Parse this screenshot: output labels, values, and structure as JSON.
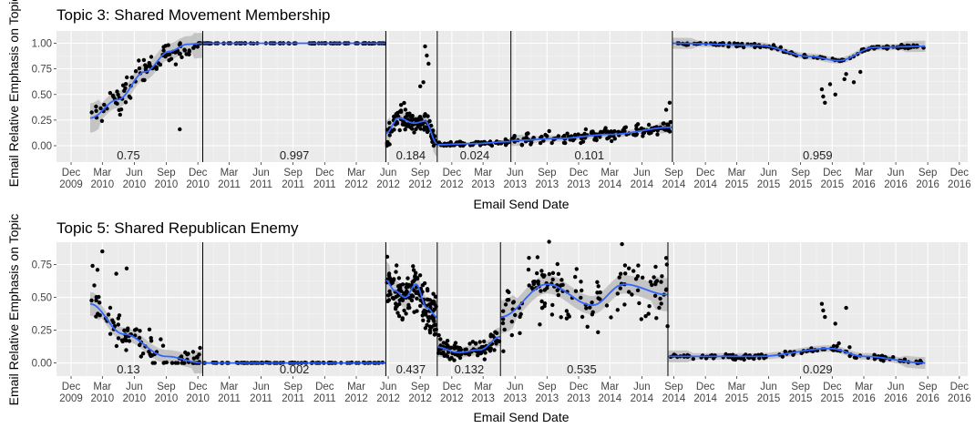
{
  "chart_data": [
    {
      "type": "scatter",
      "title": "Topic 3: Shared Movement Membership",
      "xlabel": "Email Send Date",
      "ylabel": "Email Relative Emphasis on Topic",
      "xlim": [
        "2009-10-20",
        "2016-12-25"
      ],
      "ylim": [
        -0.16,
        1.12
      ],
      "y_ticks": [
        0.0,
        0.25,
        0.5,
        0.75,
        1.0
      ],
      "y_tick_labels": [
        "0.00",
        "0.25",
        "0.50",
        "0.75",
        "1.00"
      ],
      "x_ticks": [
        "2009-12-01",
        "2010-03-01",
        "2010-06-01",
        "2010-09-01",
        "2010-12-01",
        "2011-03-01",
        "2011-06-01",
        "2011-09-01",
        "2011-12-01",
        "2012-03-01",
        "2012-06-01",
        "2012-09-01",
        "2012-12-01",
        "2013-03-01",
        "2013-06-01",
        "2013-09-01",
        "2013-12-01",
        "2014-03-01",
        "2014-06-01",
        "2014-09-01",
        "2014-12-01",
        "2015-03-01",
        "2015-06-01",
        "2015-09-01",
        "2015-12-01",
        "2016-03-01",
        "2016-06-01",
        "2016-09-01",
        "2016-12-01"
      ],
      "x_tick_labels": [
        [
          "Dec",
          "2009"
        ],
        [
          "Mar",
          "2010"
        ],
        [
          "Jun",
          "2010"
        ],
        [
          "Sep",
          "2010"
        ],
        [
          "Dec",
          "2010"
        ],
        [
          "Mar",
          "2011"
        ],
        [
          "Jun",
          "2011"
        ],
        [
          "Sep",
          "2011"
        ],
        [
          "Dec",
          "2011"
        ],
        [
          "Mar",
          "2012"
        ],
        [
          "Jun",
          "2012"
        ],
        [
          "Sep",
          "2012"
        ],
        [
          "Dec",
          "2012"
        ],
        [
          "Mar",
          "2013"
        ],
        [
          "Jun",
          "2013"
        ],
        [
          "Sep",
          "2013"
        ],
        [
          "Dec",
          "2013"
        ],
        [
          "Mar",
          "2014"
        ],
        [
          "Jun",
          "2014"
        ],
        [
          "Sep",
          "2014"
        ],
        [
          "Dec",
          "2014"
        ],
        [
          "Mar",
          "2015"
        ],
        [
          "Jun",
          "2015"
        ],
        [
          "Sep",
          "2015"
        ],
        [
          "Dec",
          "2015"
        ],
        [
          "Mar",
          "2016"
        ],
        [
          "Jun",
          "2016"
        ],
        [
          "Sep",
          "2016"
        ],
        [
          "Dec",
          "2016"
        ]
      ],
      "breakpoints": [
        "2010-12-15",
        "2012-05-25",
        "2012-10-20",
        "2013-05-20",
        "2014-08-28"
      ],
      "segment_labels": [
        {
          "x": "2010-05-15",
          "label": "0.75"
        },
        {
          "x": "2011-09-05",
          "label": "0.997"
        },
        {
          "x": "2012-08-05",
          "label": "0.184"
        },
        {
          "x": "2013-02-05",
          "label": "0.024"
        },
        {
          "x": "2014-01-01",
          "label": "0.101"
        },
        {
          "x": "2015-10-20",
          "label": "0.959"
        }
      ],
      "points_colour": "#000000",
      "smooth_colour": "#3366ff",
      "band_colour": "#bdbdbd",
      "segments": [
        {
          "start": "2010-01-25",
          "end": "2010-12-15",
          "count": 95,
          "spread": 0.13,
          "band": 0.08,
          "trend": [
            [
              "2010-01-25",
              0.27
            ],
            [
              "2010-04-15",
              0.45
            ],
            [
              "2010-07-01",
              0.72
            ],
            [
              "2010-09-10",
              0.92
            ],
            [
              "2010-11-01",
              0.99
            ],
            [
              "2010-12-15",
              1.0
            ]
          ]
        },
        {
          "start": "2010-12-15",
          "end": "2012-05-25",
          "count": 90,
          "spread": 0.003,
          "band": 0.006,
          "trend": [
            [
              "2010-12-15",
              1.0
            ],
            [
              "2012-05-25",
              1.0
            ]
          ]
        },
        {
          "start": "2012-05-25",
          "end": "2012-10-20",
          "count": 110,
          "spread": 0.12,
          "band": 0.07,
          "trend": [
            [
              "2012-05-25",
              0.12
            ],
            [
              "2012-07-01",
              0.27
            ],
            [
              "2012-08-15",
              0.22
            ],
            [
              "2012-09-15",
              0.24
            ],
            [
              "2012-10-20",
              0.02
            ]
          ]
        },
        {
          "start": "2012-10-20",
          "end": "2013-05-20",
          "count": 75,
          "spread": 0.025,
          "band": 0.015,
          "trend": [
            [
              "2012-10-20",
              0.01
            ],
            [
              "2013-02-01",
              0.02
            ],
            [
              "2013-05-20",
              0.04
            ]
          ]
        },
        {
          "start": "2013-05-20",
          "end": "2014-08-28",
          "count": 160,
          "spread": 0.06,
          "band": 0.03,
          "trend": [
            [
              "2013-05-20",
              0.05
            ],
            [
              "2013-10-01",
              0.07
            ],
            [
              "2014-03-01",
              0.11
            ],
            [
              "2014-08-28",
              0.18
            ]
          ]
        },
        {
          "start": "2014-08-28",
          "end": "2016-08-25",
          "count": 130,
          "spread": 0.02,
          "band": 0.03,
          "trend": [
            [
              "2014-08-28",
              1.0
            ],
            [
              "2015-05-01",
              0.98
            ],
            [
              "2015-10-01",
              0.87
            ],
            [
              "2015-12-20",
              0.83
            ],
            [
              "2016-04-01",
              0.96
            ],
            [
              "2016-08-25",
              0.97
            ]
          ]
        }
      ],
      "extra_points": [
        [
          "2012-09-15",
          0.97
        ],
        [
          "2012-09-20",
          0.88
        ],
        [
          "2012-09-25",
          0.8
        ],
        [
          "2012-09-10",
          0.62
        ],
        [
          "2012-09-01",
          0.58
        ],
        [
          "2015-11-01",
          0.55
        ],
        [
          "2015-11-05",
          0.48
        ],
        [
          "2015-11-10",
          0.42
        ],
        [
          "2015-11-25",
          0.6
        ],
        [
          "2015-12-10",
          0.5
        ],
        [
          "2016-01-05",
          0.65
        ],
        [
          "2016-01-10",
          0.7
        ],
        [
          "2016-02-01",
          0.62
        ],
        [
          "2016-02-20",
          0.72
        ],
        [
          "2010-10-10",
          0.16
        ],
        [
          "2014-08-20",
          0.42
        ],
        [
          "2014-08-10",
          0.35
        ]
      ]
    },
    {
      "type": "scatter",
      "title": "Topic 5: Shared Republican Enemy",
      "xlabel": "Email Send Date",
      "ylabel": "Email Relative Emphasis on Topic",
      "xlim": [
        "2009-10-20",
        "2016-12-25"
      ],
      "ylim": [
        -0.1,
        0.92
      ],
      "y_ticks": [
        0.0,
        0.25,
        0.5,
        0.75
      ],
      "y_tick_labels": [
        "0.00",
        "0.25",
        "0.50",
        "0.75"
      ],
      "x_ticks": [
        "2009-12-01",
        "2010-03-01",
        "2010-06-01",
        "2010-09-01",
        "2010-12-01",
        "2011-03-01",
        "2011-06-01",
        "2011-09-01",
        "2011-12-01",
        "2012-03-01",
        "2012-06-01",
        "2012-09-01",
        "2012-12-01",
        "2013-03-01",
        "2013-06-01",
        "2013-09-01",
        "2013-12-01",
        "2014-03-01",
        "2014-06-01",
        "2014-09-01",
        "2014-12-01",
        "2015-03-01",
        "2015-06-01",
        "2015-09-01",
        "2015-12-01",
        "2016-03-01",
        "2016-06-01",
        "2016-09-01",
        "2016-12-01"
      ],
      "x_tick_labels": [
        [
          "Dec",
          "2009"
        ],
        [
          "Mar",
          "2010"
        ],
        [
          "Jun",
          "2010"
        ],
        [
          "Sep",
          "2010"
        ],
        [
          "Dec",
          "2010"
        ],
        [
          "Mar",
          "2011"
        ],
        [
          "Jun",
          "2011"
        ],
        [
          "Sep",
          "2011"
        ],
        [
          "Dec",
          "2011"
        ],
        [
          "Mar",
          "2012"
        ],
        [
          "Jun",
          "2012"
        ],
        [
          "Sep",
          "2012"
        ],
        [
          "Dec",
          "2012"
        ],
        [
          "Mar",
          "2013"
        ],
        [
          "Jun",
          "2013"
        ],
        [
          "Sep",
          "2013"
        ],
        [
          "Dec",
          "2013"
        ],
        [
          "Mar",
          "2014"
        ],
        [
          "Jun",
          "2014"
        ],
        [
          "Sep",
          "2014"
        ],
        [
          "Dec",
          "2014"
        ],
        [
          "Mar",
          "2015"
        ],
        [
          "Jun",
          "2015"
        ],
        [
          "Sep",
          "2015"
        ],
        [
          "Dec",
          "2015"
        ],
        [
          "Mar",
          "2016"
        ],
        [
          "Jun",
          "2016"
        ],
        [
          "Sep",
          "2016"
        ],
        [
          "Dec",
          "2016"
        ]
      ],
      "breakpoints": [
        "2010-12-15",
        "2012-05-25",
        "2012-10-20",
        "2013-04-20",
        "2014-08-15"
      ],
      "segment_labels": [
        {
          "x": "2010-05-15",
          "label": "0.13"
        },
        {
          "x": "2011-09-05",
          "label": "0.002"
        },
        {
          "x": "2012-08-05",
          "label": "0.437"
        },
        {
          "x": "2013-01-20",
          "label": "0.132"
        },
        {
          "x": "2013-12-10",
          "label": "0.535"
        },
        {
          "x": "2015-10-20",
          "label": "0.029"
        }
      ],
      "points_colour": "#000000",
      "smooth_colour": "#3366ff",
      "band_colour": "#bdbdbd",
      "segments": [
        {
          "start": "2010-01-25",
          "end": "2010-12-15",
          "count": 95,
          "spread": 0.12,
          "band": 0.05,
          "trend": [
            [
              "2010-01-25",
              0.45
            ],
            [
              "2010-05-01",
              0.22
            ],
            [
              "2010-09-01",
              0.05
            ],
            [
              "2010-12-15",
              0.0
            ]
          ]
        },
        {
          "start": "2010-12-15",
          "end": "2012-05-25",
          "count": 90,
          "spread": 0.004,
          "band": 0.005,
          "trend": [
            [
              "2010-12-15",
              0.0
            ],
            [
              "2012-05-25",
              0.0
            ]
          ]
        },
        {
          "start": "2012-05-25",
          "end": "2012-10-20",
          "count": 150,
          "spread": 0.2,
          "band": 0.08,
          "trend": [
            [
              "2012-05-25",
              0.63
            ],
            [
              "2012-06-20",
              0.55
            ],
            [
              "2012-07-20",
              0.5
            ],
            [
              "2012-08-20",
              0.6
            ],
            [
              "2012-09-20",
              0.42
            ],
            [
              "2012-10-20",
              0.35
            ]
          ]
        },
        {
          "start": "2012-10-20",
          "end": "2013-04-20",
          "count": 100,
          "spread": 0.08,
          "band": 0.04,
          "trend": [
            [
              "2012-10-20",
              0.12
            ],
            [
              "2012-12-20",
              0.08
            ],
            [
              "2013-02-20",
              0.1
            ],
            [
              "2013-04-20",
              0.2
            ]
          ]
        },
        {
          "start": "2013-04-20",
          "end": "2014-08-15",
          "count": 140,
          "spread": 0.22,
          "band": 0.07,
          "trend": [
            [
              "2013-04-20",
              0.35
            ],
            [
              "2013-09-01",
              0.6
            ],
            [
              "2014-01-10",
              0.44
            ],
            [
              "2014-04-10",
              0.6
            ],
            [
              "2014-08-15",
              0.52
            ]
          ]
        },
        {
          "start": "2014-08-15",
          "end": "2016-08-25",
          "count": 130,
          "spread": 0.02,
          "band": 0.025,
          "trend": [
            [
              "2014-08-15",
              0.05
            ],
            [
              "2015-05-01",
              0.05
            ],
            [
              "2015-11-25",
              0.11
            ],
            [
              "2016-03-01",
              0.05
            ],
            [
              "2016-08-25",
              0.0
            ]
          ]
        }
      ],
      "extra_points": [
        [
          "2015-11-01",
          0.45
        ],
        [
          "2015-11-05",
          0.4
        ],
        [
          "2015-11-10",
          0.35
        ],
        [
          "2015-12-10",
          0.3
        ],
        [
          "2016-01-10",
          0.42
        ],
        [
          "2016-01-20",
          0.12
        ],
        [
          "2015-12-20",
          0.15
        ],
        [
          "2010-02-01",
          0.74
        ],
        [
          "2010-02-15",
          0.71
        ],
        [
          "2010-03-01",
          0.85
        ],
        [
          "2010-04-10",
          0.68
        ],
        [
          "2010-05-10",
          0.72
        ],
        [
          "2014-08-10",
          0.8
        ],
        [
          "2014-08-12",
          0.75
        ],
        [
          "2014-08-14",
          0.28
        ]
      ]
    }
  ]
}
